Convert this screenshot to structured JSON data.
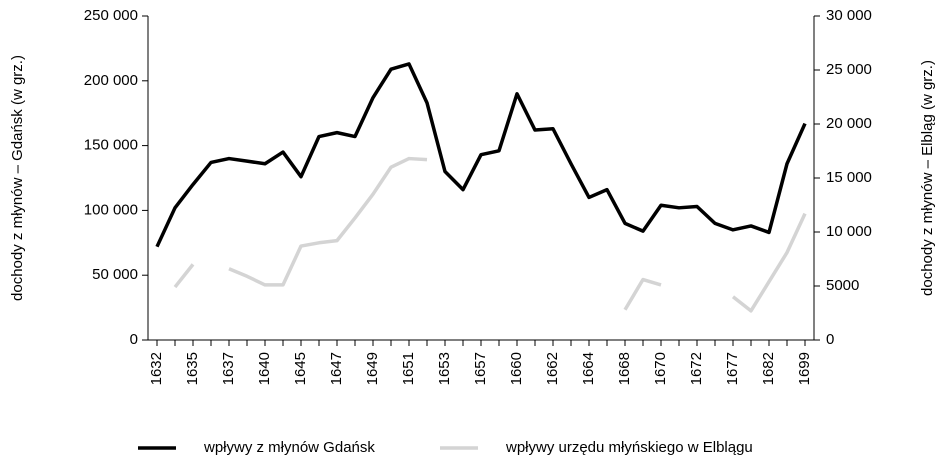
{
  "chart_data": {
    "type": "line",
    "y_label": "dochody z młynów – Gdańsk (w grz.)",
    "y2_label": "dochody z młynów – Elbląg (w grz.)",
    "categories": [
      "1632",
      null,
      "1635",
      null,
      "1637",
      null,
      "1640",
      null,
      "1645",
      null,
      "1647",
      null,
      "1649",
      null,
      "1651",
      null,
      "1653",
      null,
      "1657",
      null,
      "1660",
      null,
      "1662",
      null,
      "1664",
      null,
      "1668",
      null,
      "1670",
      null,
      "1672",
      null,
      "1677",
      null,
      "1682",
      null,
      "1699"
    ],
    "series": [
      {
        "name": "wpływy z młynów Gdańsk",
        "color": "#000000",
        "axis": "y",
        "values": [
          72000,
          102000,
          120000,
          137000,
          140000,
          138000,
          136000,
          145000,
          126000,
          157000,
          160000,
          157000,
          187000,
          209000,
          213000,
          183000,
          130000,
          116000,
          143000,
          146000,
          190000,
          162000,
          163000,
          136000,
          110000,
          116000,
          90000,
          84000,
          104000,
          102000,
          103000,
          90000,
          85000,
          88000,
          83000,
          136000,
          167000
        ]
      },
      {
        "name": "wpływy urzędu młyńskiego w Elblągu",
        "color": "#d4d4d4",
        "axis": "y2",
        "values": [
          null,
          4900,
          7000,
          null,
          6600,
          5900,
          5100,
          5100,
          8700,
          9000,
          9200,
          11300,
          13500,
          16000,
          16800,
          16700,
          null,
          null,
          null,
          null,
          null,
          null,
          null,
          null,
          null,
          null,
          2800,
          5600,
          5100,
          null,
          null,
          null,
          4000,
          2700,
          5400,
          8100,
          11700
        ]
      }
    ],
    "ylim": [
      0,
      250000
    ],
    "yticks": [
      0,
      {
        "value": 50000,
        "label": "50 000"
      },
      {
        "value": 100000,
        "label": "100 000"
      },
      {
        "value": 150000,
        "label": "150 000"
      },
      {
        "value": 200000,
        "label": "200 000"
      },
      {
        "value": 250000,
        "label": "250 000"
      }
    ],
    "y2lim": [
      0,
      30000
    ],
    "y2ticks": [
      0,
      5000,
      {
        "value": 10000,
        "label": "10 000"
      },
      {
        "value": 15000,
        "label": "15 000"
      },
      {
        "value": 20000,
        "label": "20 000"
      },
      {
        "value": 25000,
        "label": "25 000"
      },
      {
        "value": 30000,
        "label": "30 000"
      }
    ],
    "grid": false
  }
}
